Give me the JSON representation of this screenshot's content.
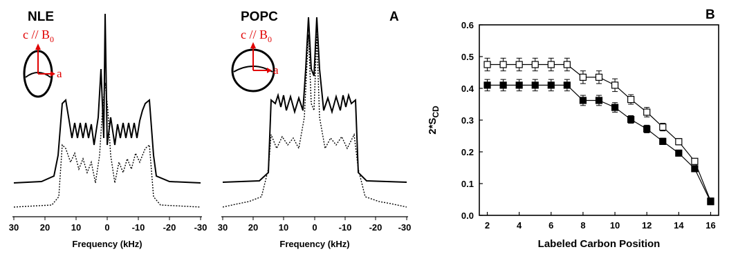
{
  "panel_labels": {
    "a": "A",
    "b": "B"
  },
  "spectra": [
    {
      "sample": "NLE",
      "xlabel": "Frequency (kHz)",
      "xticks": [
        "30",
        "20",
        "10",
        "0",
        "-10",
        "-20",
        "-30"
      ],
      "inset": {
        "c_label": "c // B",
        "c_sub": "0",
        "a_label": "a"
      }
    },
    {
      "sample": "POPC",
      "xlabel": "Frequency (kHz)",
      "xticks": [
        "30",
        "20",
        "10",
        "0",
        "-10",
        "-20",
        "-30"
      ],
      "inset": {
        "c_label": "c // B",
        "c_sub": "0",
        "a_label": "a"
      }
    }
  ],
  "chart_data": {
    "type": "scatter",
    "title": "",
    "xlabel": "Labeled Carbon Position",
    "ylabel_main": "2*S",
    "ylabel_sub": "CD",
    "xlim": [
      1.5,
      16.5
    ],
    "ylim": [
      0.0,
      0.6
    ],
    "xticks": [
      2,
      4,
      6,
      8,
      10,
      12,
      14,
      16
    ],
    "yticks": [
      "0.0",
      "0.1",
      "0.2",
      "0.3",
      "0.4",
      "0.5",
      "0.6"
    ],
    "series": [
      {
        "marker": "open-square",
        "x": [
          2,
          3,
          4,
          5,
          6,
          7,
          8,
          9,
          10,
          11,
          12,
          13,
          14,
          15,
          16
        ],
        "y": [
          0.475,
          0.475,
          0.475,
          0.475,
          0.475,
          0.475,
          0.435,
          0.435,
          0.41,
          0.365,
          0.325,
          0.278,
          0.232,
          0.17,
          0.045
        ],
        "err": [
          0.02,
          0.02,
          0.02,
          0.02,
          0.02,
          0.02,
          0.02,
          0.02,
          0.02,
          0.015,
          0.015,
          0.012,
          0.01,
          0.008,
          0.008
        ]
      },
      {
        "marker": "filled-square",
        "x": [
          2,
          3,
          4,
          5,
          6,
          7,
          8,
          9,
          10,
          11,
          12,
          13,
          14,
          15,
          16
        ],
        "y": [
          0.41,
          0.41,
          0.41,
          0.41,
          0.41,
          0.41,
          0.362,
          0.362,
          0.34,
          0.302,
          0.272,
          0.233,
          0.196,
          0.147,
          0.043
        ],
        "err": [
          0.018,
          0.018,
          0.018,
          0.018,
          0.018,
          0.018,
          0.016,
          0.016,
          0.015,
          0.012,
          0.012,
          0.01,
          0.008,
          0.008,
          0.006
        ]
      }
    ]
  }
}
